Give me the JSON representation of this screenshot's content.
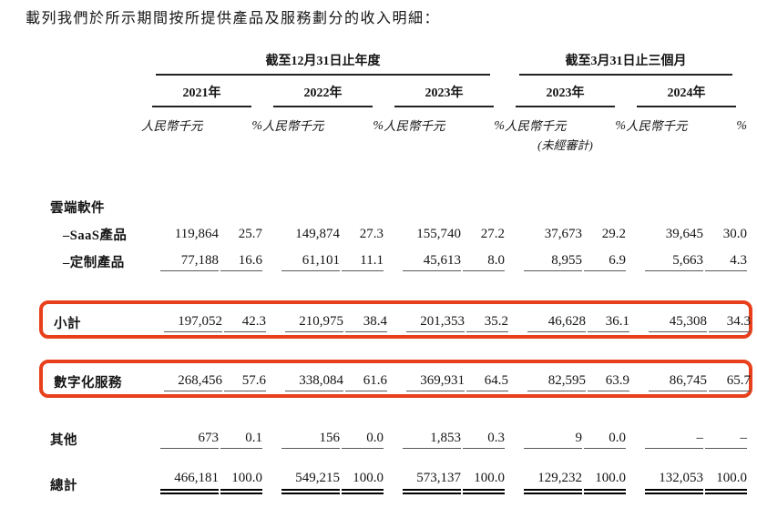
{
  "title": "載列我們於所示期間按所提供產品及服務劃分的收入明細：",
  "colors": {
    "accent_red": "#e8401c",
    "rule_dark": "#222222",
    "rule_gray": "#595959"
  },
  "table": {
    "groups": [
      {
        "label": "截至12月31日止年度",
        "years": [
          "2021年",
          "2022年",
          "2023年"
        ]
      },
      {
        "label": "截至3月31日止三個月",
        "years": [
          "2023年",
          "2024年"
        ]
      }
    ],
    "unit_label": "人民幣千元",
    "pct_label": "%",
    "unaudited_note": "(未經審計)",
    "rows": [
      {
        "label": "雲端軟件",
        "type": "section",
        "cells": []
      },
      {
        "label": "–SaaS產品",
        "cells": [
          "119,864",
          "25.7",
          "149,874",
          "27.3",
          "155,740",
          "27.2",
          "37,673",
          "29.2",
          "39,645",
          "30.0"
        ]
      },
      {
        "label": "–定制產品",
        "underline": true,
        "cells": [
          "77,188",
          "16.6",
          "61,101",
          "11.1",
          "45,613",
          "8.0",
          "8,955",
          "6.9",
          "5,663",
          "4.3"
        ]
      },
      {
        "label": "小計",
        "highlight": true,
        "underline": true,
        "cells": [
          "197,052",
          "42.3",
          "210,975",
          "38.4",
          "201,353",
          "35.2",
          "46,628",
          "36.1",
          "45,308",
          "34.3"
        ]
      },
      {
        "label": "數字化服務",
        "highlight": true,
        "underline": true,
        "cells": [
          "268,456",
          "57.6",
          "338,084",
          "61.6",
          "369,931",
          "64.5",
          "82,595",
          "63.9",
          "86,745",
          "65.7"
        ]
      },
      {
        "label": "其他",
        "underline": true,
        "cells": [
          "673",
          "0.1",
          "156",
          "0.0",
          "1,853",
          "0.3",
          "9",
          "0.0",
          "–",
          "–"
        ]
      },
      {
        "label": "總計",
        "double_underline": true,
        "cells": [
          "466,181",
          "100.0",
          "549,215",
          "100.0",
          "573,137",
          "100.0",
          "129,232",
          "100.0",
          "132,053",
          "100.0"
        ]
      }
    ]
  }
}
